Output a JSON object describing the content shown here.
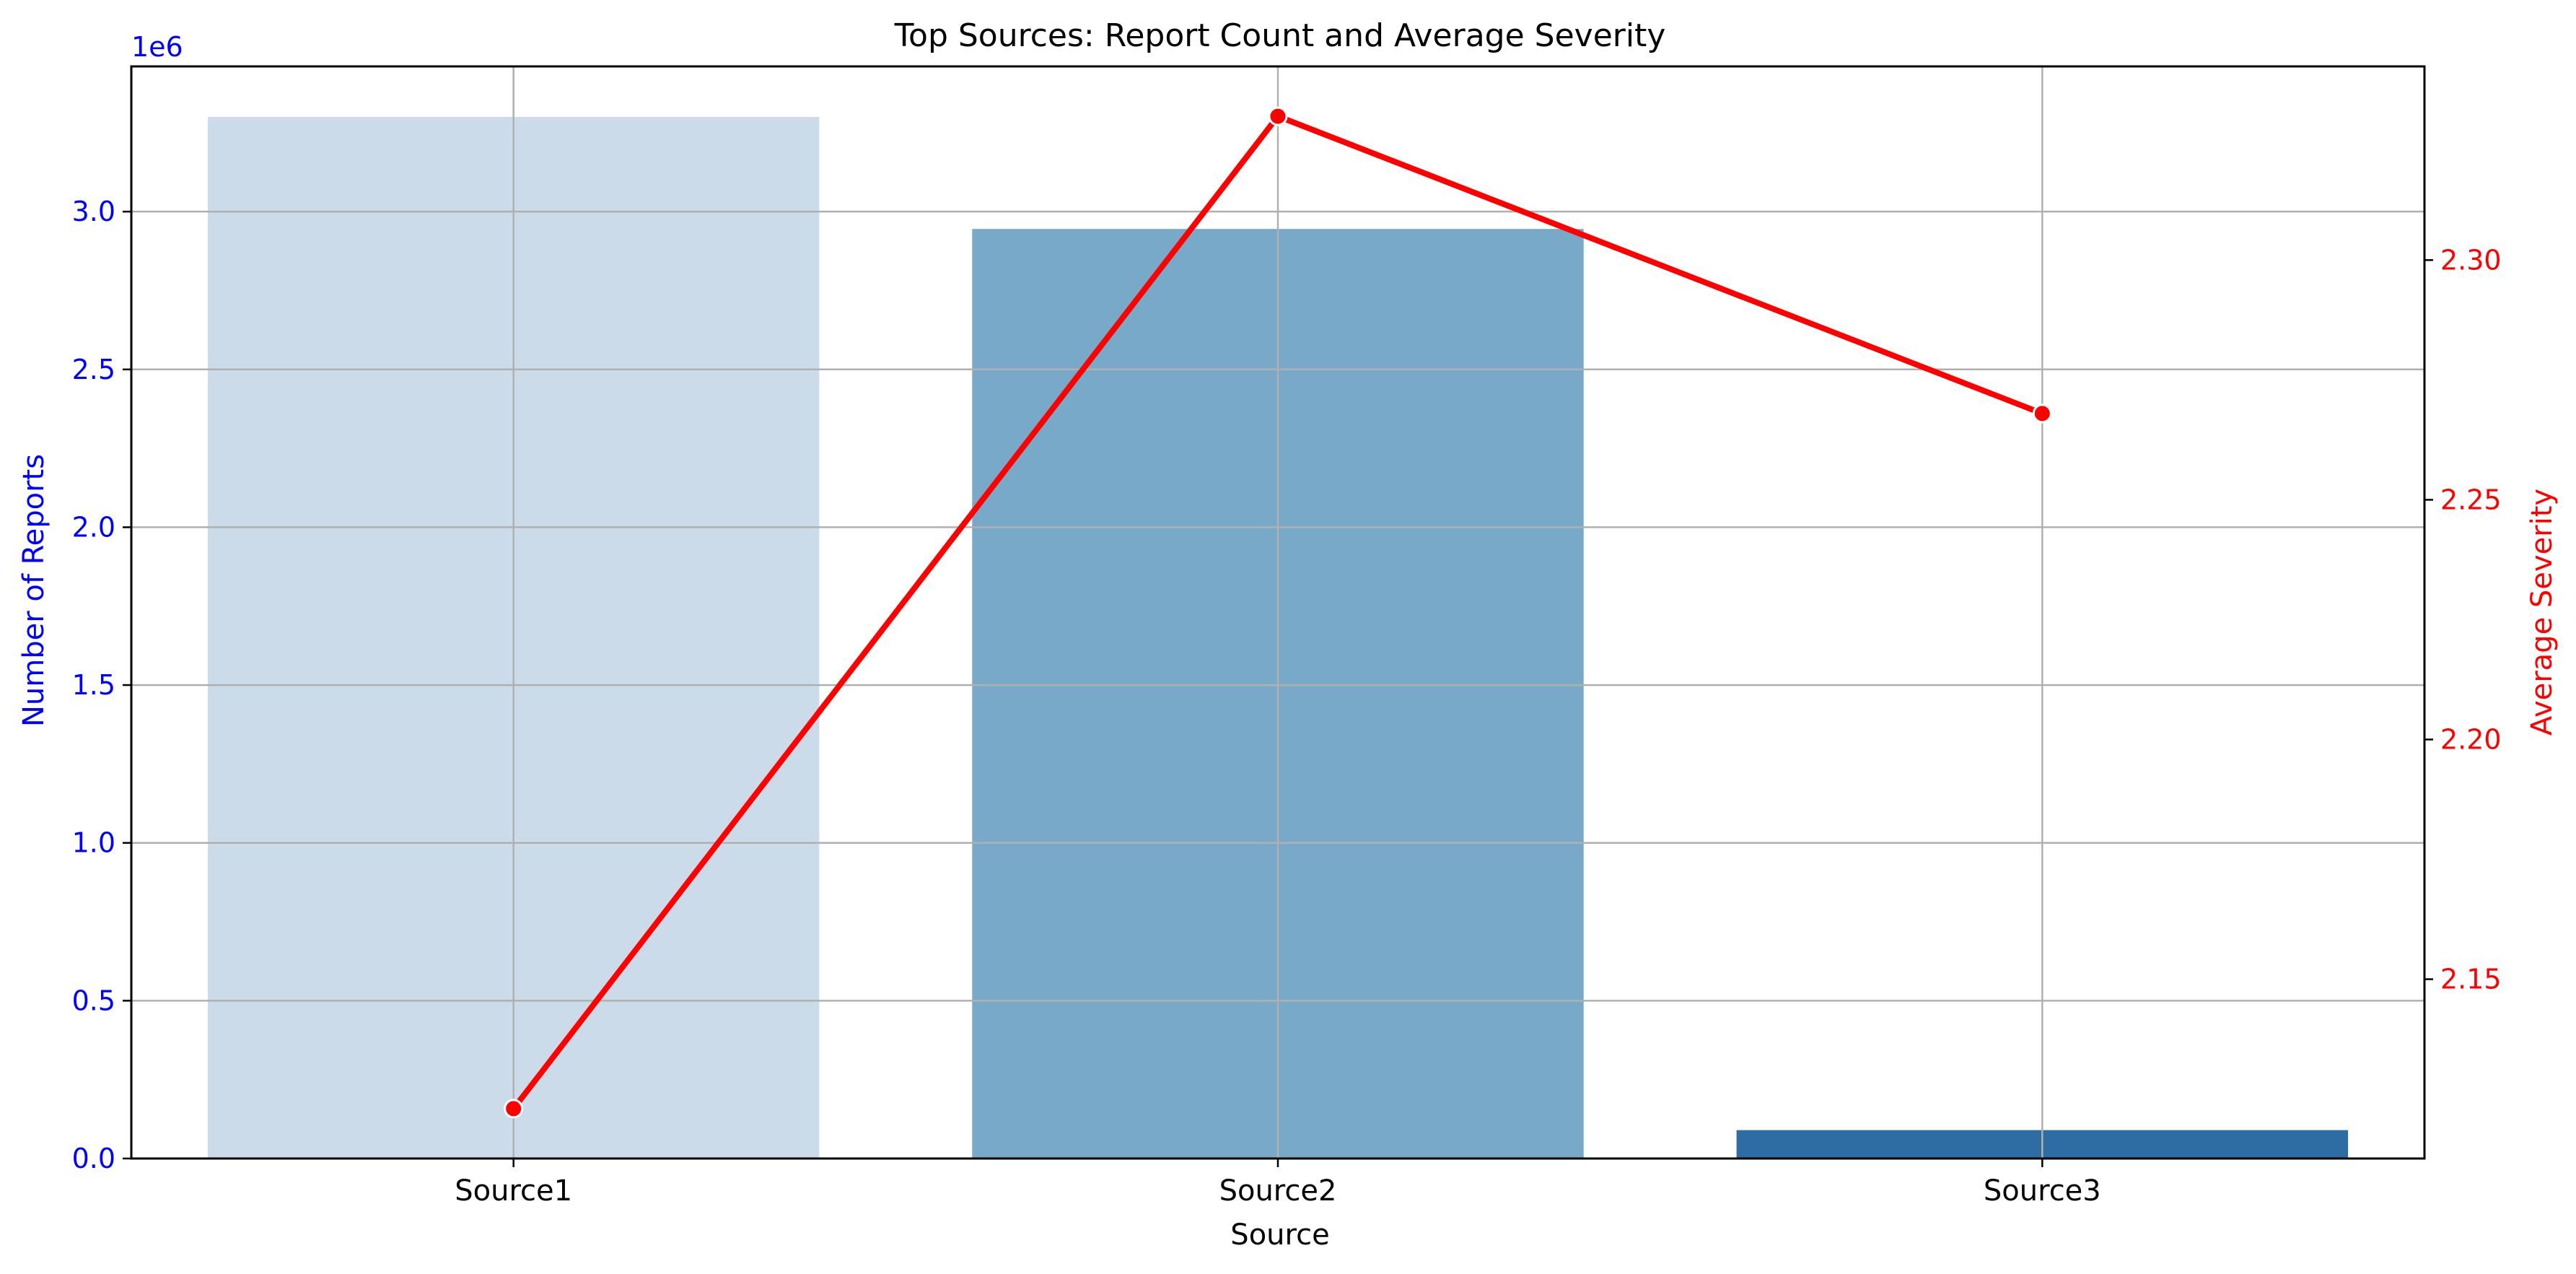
{
  "chart_data": {
    "type": "bar",
    "title": "Top Sources: Report Count and Average Severity",
    "xlabel": "Source",
    "categories": [
      "Source1",
      "Source2",
      "Source3"
    ],
    "series": [
      {
        "name": "Number of Reports",
        "kind": "bar",
        "axis": "left",
        "values": [
          3300000,
          2945000,
          90000
        ],
        "colors": [
          "#cbdbea",
          "#78a9c9",
          "#2e6da4"
        ]
      },
      {
        "name": "Average Severity",
        "kind": "line",
        "axis": "right",
        "values": [
          2.123,
          2.33,
          2.268
        ],
        "color": "#ff0000"
      }
    ],
    "y_left": {
      "label": "Number of Reports",
      "multiplier_label": "1e6",
      "ylim": [
        0,
        3460000
      ],
      "ticks": [
        0,
        500000,
        1000000,
        1500000,
        2000000,
        2500000,
        3000000
      ],
      "tick_labels": [
        "0.0",
        "0.5",
        "1.0",
        "1.5",
        "2.0",
        "2.5",
        "3.0"
      ],
      "color": "#0000ff"
    },
    "y_right": {
      "label": "Average Severity",
      "ylim": [
        2.1126,
        2.3404
      ],
      "ticks": [
        2.15,
        2.2,
        2.25,
        2.3
      ],
      "tick_labels": [
        "2.15",
        "2.20",
        "2.25",
        "2.30"
      ],
      "color": "#ff0000"
    },
    "grid": true
  }
}
